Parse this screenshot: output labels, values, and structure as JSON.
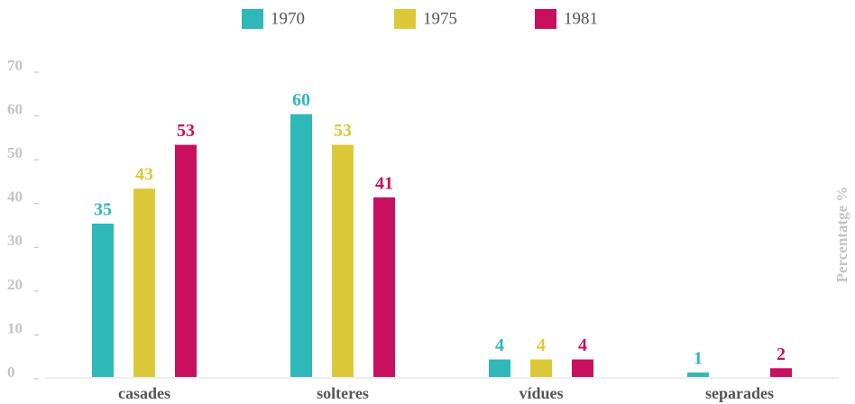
{
  "chart_data": {
    "type": "bar",
    "categories": [
      "casades",
      "solteres",
      "vídues",
      "separades"
    ],
    "series": [
      {
        "name": "1970",
        "color": "#2fb8b8",
        "values": [
          35,
          60,
          4,
          1
        ]
      },
      {
        "name": "1975",
        "color": "#dcc93a",
        "values": [
          43,
          53,
          4,
          null
        ]
      },
      {
        "name": "1981",
        "color": "#c8105e",
        "values": [
          53,
          41,
          4,
          2
        ]
      }
    ],
    "y_label": "Percentatge %",
    "ylim": [
      0,
      70
    ],
    "yticks": [
      0,
      10,
      20,
      30,
      40,
      50,
      60,
      70
    ],
    "legend": "top",
    "grid": false
  }
}
